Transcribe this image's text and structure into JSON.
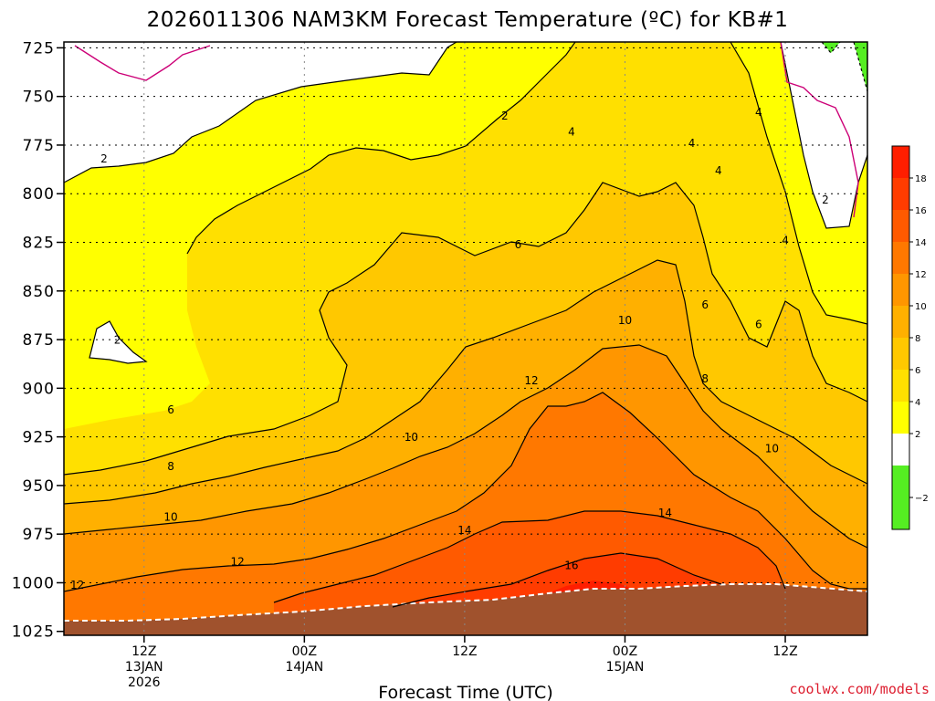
{
  "chart_data": {
    "type": "heatmap",
    "title": "2026011306 NAM3KM Forecast Temperature (ºC) for KB#1",
    "xlabel": "Forecast Time (UTC)",
    "ylabel": "",
    "y_axis": {
      "unit": "hPa",
      "inverted": true,
      "range": [
        1025,
        725
      ],
      "ticks": [
        725,
        750,
        775,
        800,
        825,
        850,
        875,
        900,
        925,
        950,
        975,
        1000,
        1025
      ]
    },
    "x_axis": {
      "range_hours_utc": [
        "2026-01-13 06Z",
        "2026-01-15 18Z"
      ],
      "ticks": [
        {
          "time": "2026-01-13 12Z",
          "label_lines": [
            "12Z",
            "13JAN",
            "2026"
          ]
        },
        {
          "time": "2026-01-14 00Z",
          "label_lines": [
            "00Z",
            "14JAN"
          ]
        },
        {
          "time": "2026-01-14 12Z",
          "label_lines": [
            "12Z"
          ]
        },
        {
          "time": "2026-01-15 00Z",
          "label_lines": [
            "00Z",
            "15JAN"
          ]
        },
        {
          "time": "2026-01-15 12Z",
          "label_lines": [
            "12Z"
          ]
        }
      ]
    },
    "grid": true,
    "grid_style": "dotted",
    "colorbar": {
      "position": "right",
      "tick_labels": [
        "−2",
        "2",
        "4",
        "6",
        "8",
        "10",
        "12",
        "14",
        "16",
        "18"
      ],
      "bins": [
        {
          "range": [
            -4,
            -2
          ],
          "color": "#55ee22"
        },
        {
          "range": [
            -2,
            0
          ],
          "color": "#55ee22"
        },
        {
          "range": [
            0,
            2
          ],
          "color": "#ffffff"
        },
        {
          "range": [
            2,
            4
          ],
          "color": "#ffff00"
        },
        {
          "range": [
            4,
            6
          ],
          "color": "#ffe000"
        },
        {
          "range": [
            6,
            8
          ],
          "color": "#ffc800"
        },
        {
          "range": [
            8,
            10
          ],
          "color": "#ffb000"
        },
        {
          "range": [
            10,
            12
          ],
          "color": "#ff9600"
        },
        {
          "range": [
            12,
            14
          ],
          "color": "#ff7800"
        },
        {
          "range": [
            14,
            16
          ],
          "color": "#ff5a00"
        },
        {
          "range": [
            16,
            18
          ],
          "color": "#ff3c00"
        },
        {
          "range": [
            18,
            20
          ],
          "color": "#ff1e00"
        }
      ]
    },
    "contour_labels": [
      {
        "value": "2",
        "time": "2026-01-13 09Z",
        "hpa": 784
      },
      {
        "value": "2",
        "time": "2026-01-13 10Z",
        "hpa": 877
      },
      {
        "value": "2",
        "time": "2026-01-14 15Z",
        "hpa": 762
      },
      {
        "value": "2",
        "time": "2026-01-15 15Z",
        "hpa": 805
      },
      {
        "value": "4",
        "time": "2026-01-14 20Z",
        "hpa": 770
      },
      {
        "value": "4",
        "time": "2026-01-15 05Z",
        "hpa": 776
      },
      {
        "value": "4",
        "time": "2026-01-15 07Z",
        "hpa": 790
      },
      {
        "value": "4",
        "time": "2026-01-15 10Z",
        "hpa": 760
      },
      {
        "value": "4",
        "time": "2026-01-15 12Z",
        "hpa": 826
      },
      {
        "value": "6",
        "time": "2026-01-13 14Z",
        "hpa": 913
      },
      {
        "value": "6",
        "time": "2026-01-14 16Z",
        "hpa": 828
      },
      {
        "value": "6",
        "time": "2026-01-15 06Z",
        "hpa": 859
      },
      {
        "value": "6",
        "time": "2026-01-15 10Z",
        "hpa": 869
      },
      {
        "value": "8",
        "time": "2026-01-13 14Z",
        "hpa": 942
      },
      {
        "value": "8",
        "time": "2026-01-15 06Z",
        "hpa": 897
      },
      {
        "value": "10",
        "time": "2026-01-13 14Z",
        "hpa": 968
      },
      {
        "value": "10",
        "time": "2026-01-14 08Z",
        "hpa": 927
      },
      {
        "value": "10",
        "time": "2026-01-15 00Z",
        "hpa": 867
      },
      {
        "value": "10",
        "time": "2026-01-15 11Z",
        "hpa": 933
      },
      {
        "value": "12",
        "time": "2026-01-13 07Z",
        "hpa": 1003
      },
      {
        "value": "12",
        "time": "2026-01-13 19Z",
        "hpa": 991
      },
      {
        "value": "12",
        "time": "2026-01-14 17Z",
        "hpa": 898
      },
      {
        "value": "14",
        "time": "2026-01-14 12Z",
        "hpa": 975
      },
      {
        "value": "14",
        "time": "2026-01-15 03Z",
        "hpa": 966
      },
      {
        "value": "16",
        "time": "2026-01-14 20Z",
        "hpa": 993
      }
    ],
    "surface_fill_color": "#a0522d"
  },
  "credit": "coolwx.com/models"
}
